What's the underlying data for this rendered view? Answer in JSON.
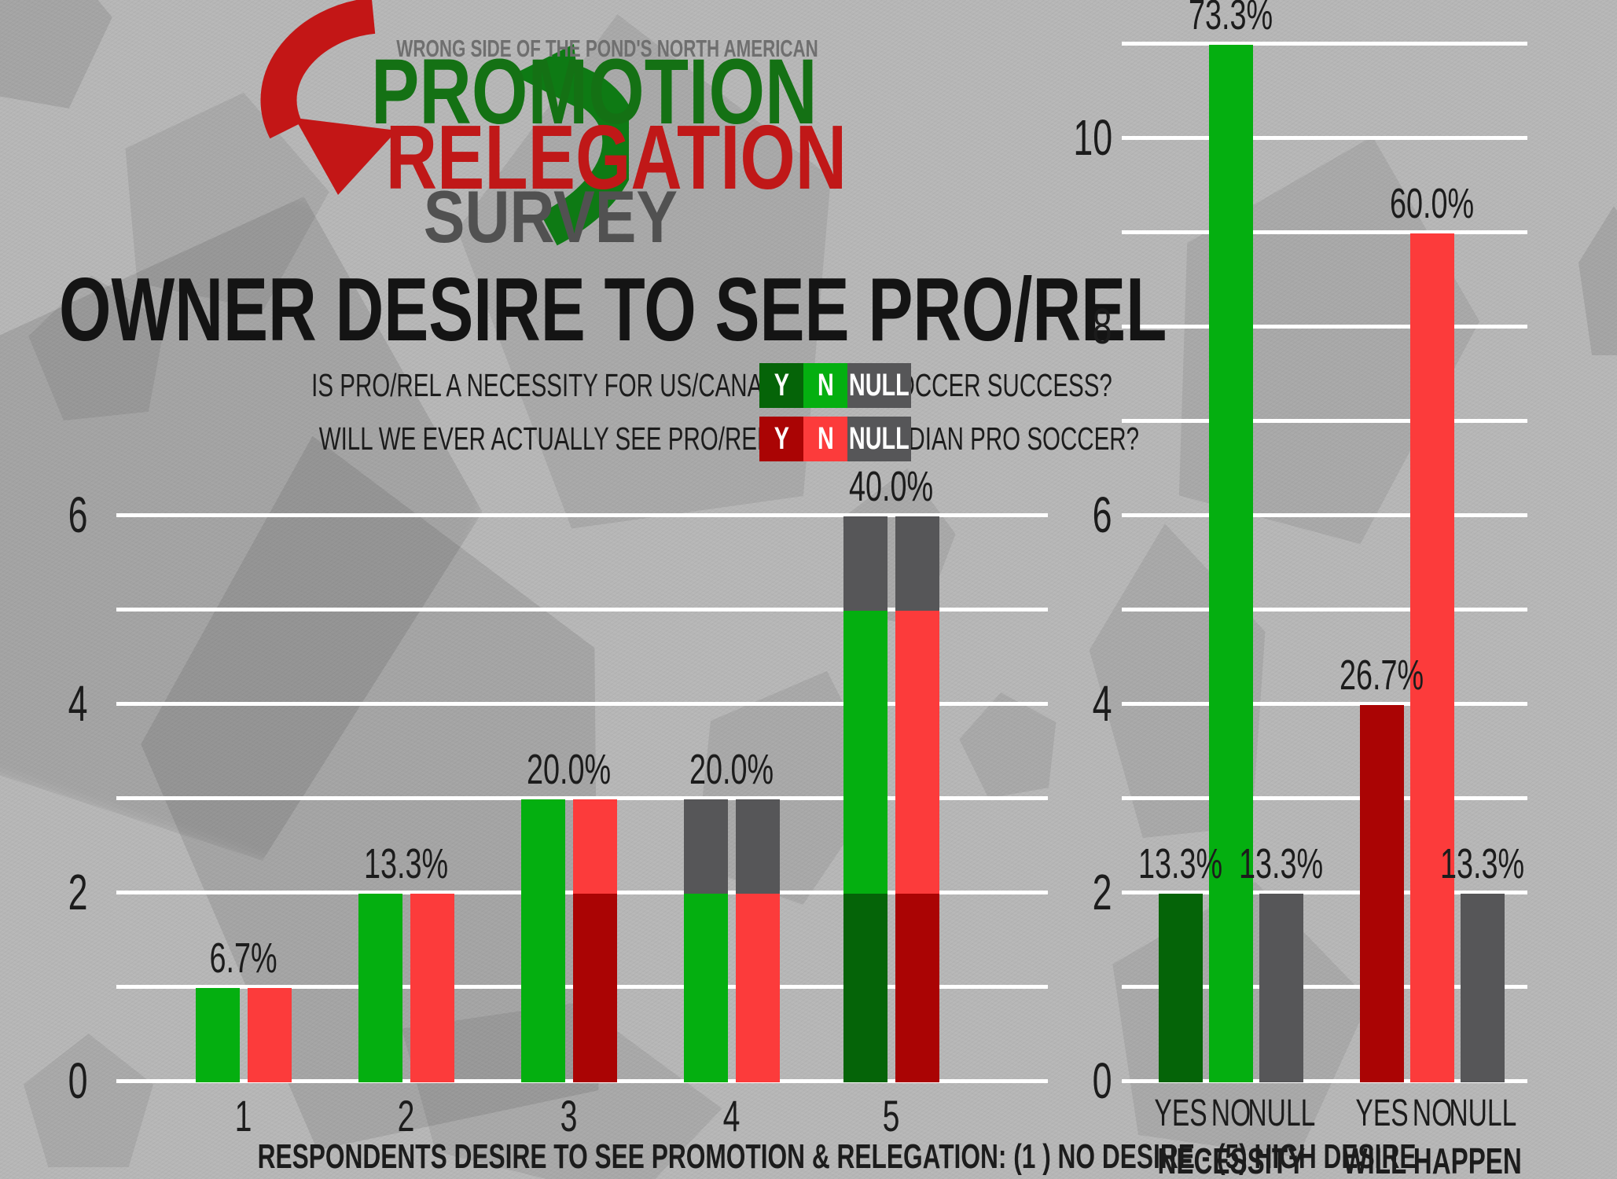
{
  "logo": {
    "tagline": "WRONG SIDE OF THE POND'S NORTH AMERICAN",
    "line1": "PROMOTION",
    "line2": "RELEGATION",
    "line3": "SURVEY"
  },
  "title": "OWNER DESIRE TO SEE PRO/REL",
  "legend": {
    "rows": [
      {
        "question": "IS PRO/REL A NECESSITY FOR US/CANADIAN PRO SOCCER SUCCESS?",
        "swatches": [
          {
            "label": "Y",
            "color_key": "dark_green"
          },
          {
            "label": "N",
            "color_key": "bright_green"
          },
          {
            "label": "NULL",
            "color_key": "gray"
          }
        ]
      },
      {
        "question": "WILL WE EVER ACTUALLY SEE PRO/REL IN US/CANADIAN PRO SOCCER?",
        "swatches": [
          {
            "label": "Y",
            "color_key": "dark_red"
          },
          {
            "label": "N",
            "color_key": "bright_red"
          },
          {
            "label": "NULL",
            "color_key": "gray"
          }
        ]
      }
    ]
  },
  "colors": {
    "background": "#b6b6b6",
    "gridline": "#ffffff",
    "text": "#1c1c1c",
    "bright_green": "#04af10",
    "dark_green": "#056408",
    "bright_red": "#fc3b3b",
    "dark_red": "#aa0404",
    "gray": "#565658",
    "logo_green": "#147114",
    "logo_red": "#c01818",
    "logo_gray": "#6f6f6f",
    "survey_gray": "#515151",
    "arrow_red": "#c31616",
    "arrow_green": "#0e7a14"
  },
  "chart_data": [
    {
      "type": "bar",
      "subtype": "stacked-pairs",
      "title": "OWNER DESIRE TO SEE PRO/REL",
      "xlabel": "RESPONDENTS DESIRE TO SEE PROMOTION & RELEGATION: (1 ) NO DESIRE - (5) HIGH DESIRE",
      "ylabel": "",
      "ylim": [
        0,
        6
      ],
      "yticks": [
        0,
        2,
        4,
        6
      ],
      "gridline_step": 1,
      "legend_position": "top",
      "groups": [
        {
          "category": "1",
          "percent": "6.7%",
          "bars": [
            {
              "question": "necessity",
              "segments": [
                {
                  "answer": "N",
                  "color": "bright_green",
                  "value": 1
                }
              ]
            },
            {
              "question": "will_happen",
              "segments": [
                {
                  "answer": "N",
                  "color": "bright_red",
                  "value": 1
                }
              ]
            }
          ]
        },
        {
          "category": "2",
          "percent": "13.3%",
          "bars": [
            {
              "question": "necessity",
              "segments": [
                {
                  "answer": "N",
                  "color": "bright_green",
                  "value": 2
                }
              ]
            },
            {
              "question": "will_happen",
              "segments": [
                {
                  "answer": "N",
                  "color": "bright_red",
                  "value": 2
                }
              ]
            }
          ]
        },
        {
          "category": "3",
          "percent": "20.0%",
          "bars": [
            {
              "question": "necessity",
              "segments": [
                {
                  "answer": "N",
                  "color": "bright_green",
                  "value": 3
                }
              ]
            },
            {
              "question": "will_happen",
              "segments": [
                {
                  "answer": "Y",
                  "color": "dark_red",
                  "value": 2
                },
                {
                  "answer": "N",
                  "color": "bright_red",
                  "value": 1
                }
              ]
            }
          ]
        },
        {
          "category": "4",
          "percent": "20.0%",
          "bars": [
            {
              "question": "necessity",
              "segments": [
                {
                  "answer": "N",
                  "color": "bright_green",
                  "value": 2
                },
                {
                  "answer": "NULL",
                  "color": "gray",
                  "value": 1
                }
              ]
            },
            {
              "question": "will_happen",
              "segments": [
                {
                  "answer": "N",
                  "color": "bright_red",
                  "value": 2
                },
                {
                  "answer": "NULL",
                  "color": "gray",
                  "value": 1
                }
              ]
            }
          ]
        },
        {
          "category": "5",
          "percent": "40.0%",
          "bars": [
            {
              "question": "necessity",
              "segments": [
                {
                  "answer": "Y",
                  "color": "dark_green",
                  "value": 2
                },
                {
                  "answer": "N",
                  "color": "bright_green",
                  "value": 3
                },
                {
                  "answer": "NULL",
                  "color": "gray",
                  "value": 1
                }
              ]
            },
            {
              "question": "will_happen",
              "segments": [
                {
                  "answer": "Y",
                  "color": "dark_red",
                  "value": 2
                },
                {
                  "answer": "N",
                  "color": "bright_red",
                  "value": 3
                },
                {
                  "answer": "NULL",
                  "color": "gray",
                  "value": 1
                }
              ]
            }
          ]
        }
      ]
    },
    {
      "type": "bar",
      "subtype": "grouped-totals",
      "title": "",
      "xlabel": "",
      "ylabel": "",
      "ylim": [
        0,
        11
      ],
      "yticks": [
        0,
        2,
        4,
        6,
        8,
        10
      ],
      "gridline_step": 1,
      "groups": [
        {
          "label": "NECESSITY",
          "bars": [
            {
              "tick": "YES",
              "percent": "13.3%",
              "segments": [
                {
                  "answer": "Y",
                  "color": "dark_green",
                  "value": 2
                }
              ]
            },
            {
              "tick": "NO",
              "percent": "73.3%",
              "segments": [
                {
                  "answer": "N",
                  "color": "bright_green",
                  "value": 11
                }
              ]
            },
            {
              "tick": "NULL",
              "percent": "13.3%",
              "segments": [
                {
                  "answer": "NULL",
                  "color": "gray",
                  "value": 2
                }
              ]
            }
          ]
        },
        {
          "label": "WILL HAPPEN",
          "bars": [
            {
              "tick": "YES",
              "percent": "26.7%",
              "segments": [
                {
                  "answer": "Y",
                  "color": "dark_red",
                  "value": 4
                }
              ]
            },
            {
              "tick": "NO",
              "percent": "60.0%",
              "segments": [
                {
                  "answer": "N",
                  "color": "bright_red",
                  "value": 9
                }
              ]
            },
            {
              "tick": "NULL",
              "percent": "13.3%",
              "segments": [
                {
                  "answer": "NULL",
                  "color": "gray",
                  "value": 2
                }
              ]
            }
          ]
        }
      ]
    }
  ]
}
